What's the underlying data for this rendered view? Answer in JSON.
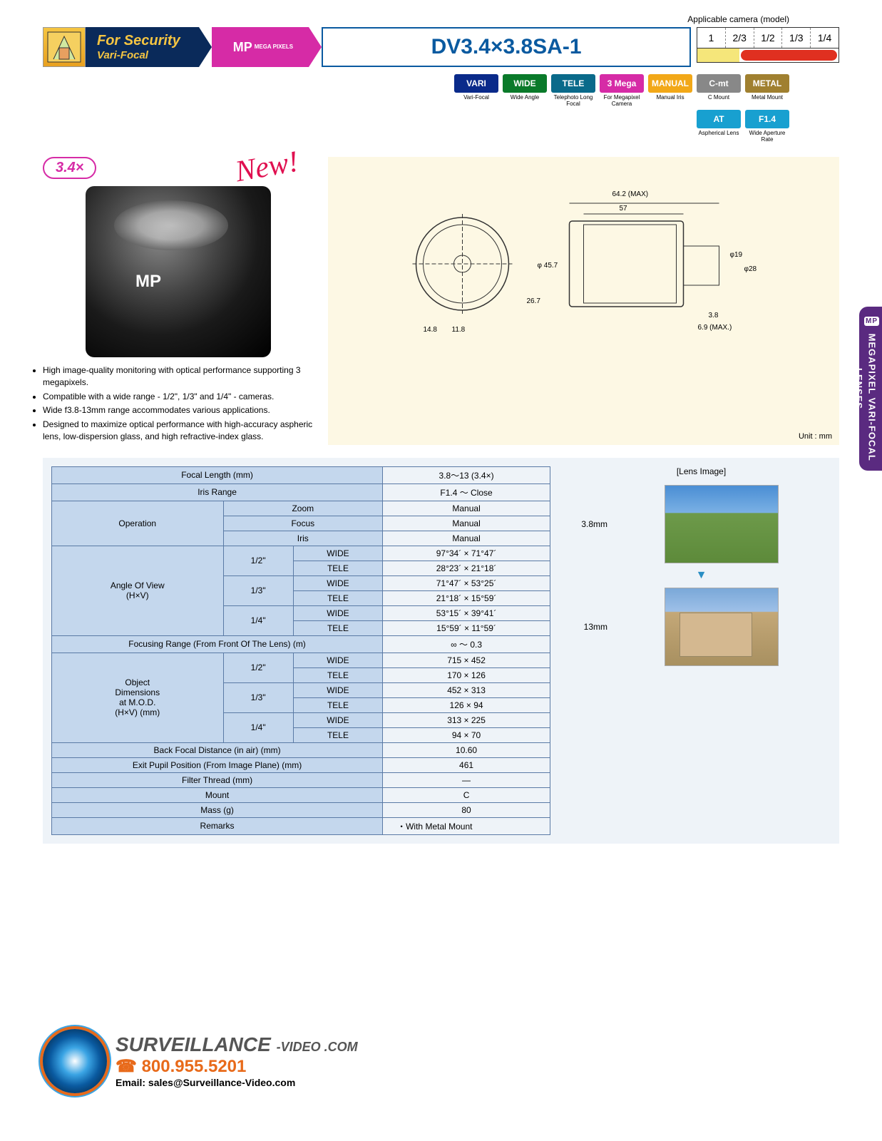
{
  "header": {
    "applicable_label": "Applicable camera (model)",
    "security_title": "For Security",
    "security_sub": "Vari-Focal",
    "mp_text": "MP",
    "mp_sub": "MEGA\nPIXELS",
    "model": "DV3.4×3.8SA-1",
    "camera_models": [
      "1",
      "2/3",
      "1/2",
      "1/3",
      "1/4"
    ],
    "camera_bar": {
      "yellow_pct": 30,
      "red_pct": 70
    }
  },
  "badges": [
    {
      "text": "VARI",
      "bg": "#0a2a8a",
      "label": "Vari-Focal"
    },
    {
      "text": "WIDE",
      "bg": "#0a7a2a",
      "label": "Wide Angle"
    },
    {
      "text": "TELE",
      "bg": "#0a6a8a",
      "label": "Telephoto\nLong Focal"
    },
    {
      "text": "3 Mega",
      "bg": "#d62ba6",
      "label": "For Megapixel\nCamera"
    },
    {
      "text": "MANUAL",
      "bg": "#f2a818",
      "label": "Manual Iris"
    },
    {
      "text": "C-mt",
      "bg": "#888888",
      "label": "C Mount",
      "extra": {
        "text": "AT",
        "bg": "#18a0d0",
        "label": "Aspherical Lens"
      }
    },
    {
      "text": "METAL",
      "bg": "#a08030",
      "label": "Metal Mount",
      "extra": {
        "text": "F1.4",
        "bg": "#18a0d0",
        "label": "Wide Aperture Rate"
      }
    }
  ],
  "product": {
    "zoom_factor": "3.4×",
    "new_tag": "New!",
    "mp_on_lens": "MP",
    "bullets": [
      "High image-quality monitoring with optical performance supporting 3 megapixels.",
      "Compatible with a wide range - 1/2\", 1/3\" and 1/4\" - cameras.",
      "Wide f3.8-13mm range accommodates various applications.",
      "Designed to maximize optical performance with high-accuracy aspheric lens, low-dispersion glass, and high refractive-index glass."
    ]
  },
  "diagram": {
    "unit_label": "Unit : mm",
    "dims": {
      "max_w": "64.2 (MAX)",
      "w": "57",
      "h": "φ 45.7",
      "front_d1": "14.8",
      "front_d2": "11.8",
      "side_d": "26.7",
      "back1": "3.8",
      "back2": "6.9 (MAX.)",
      "phi19": "φ19",
      "phi28": "φ28"
    }
  },
  "spec_table": {
    "rows": [
      {
        "label": "Focal Length (mm)",
        "value": "3.8～13 (3.4×)"
      },
      {
        "label": "Iris Range",
        "value": "F1.4 ～ Close"
      }
    ],
    "operation": {
      "label": "Operation",
      "items": [
        [
          "Zoom",
          "Manual"
        ],
        [
          "Focus",
          "Manual"
        ],
        [
          "Iris",
          "Manual"
        ]
      ]
    },
    "angle_of_view": {
      "label": "Angle Of View\n(H×V)",
      "groups": [
        {
          "sensor": "1/2\"",
          "rows": [
            [
              "WIDE",
              "97°34´ × 71°47´"
            ],
            [
              "TELE",
              "28°23´ × 21°18´"
            ]
          ]
        },
        {
          "sensor": "1/3\"",
          "rows": [
            [
              "WIDE",
              "71°47´ × 53°25´"
            ],
            [
              "TELE",
              "21°18´ × 15°59´"
            ]
          ]
        },
        {
          "sensor": "1/4\"",
          "rows": [
            [
              "WIDE",
              "53°15´ × 39°41´"
            ],
            [
              "TELE",
              "15°59´ × 11°59´"
            ]
          ]
        }
      ]
    },
    "focusing_range": {
      "label": "Focusing Range (From Front Of The Lens) (m)",
      "value": "∞ ～ 0.3"
    },
    "object_dims": {
      "label": "Object\nDimensions\nat M.O.D.\n(H×V) (mm)",
      "groups": [
        {
          "sensor": "1/2\"",
          "rows": [
            [
              "WIDE",
              "715 × 452"
            ],
            [
              "TELE",
              "170 × 126"
            ]
          ]
        },
        {
          "sensor": "1/3\"",
          "rows": [
            [
              "WIDE",
              "452 × 313"
            ],
            [
              "TELE",
              "126 × 94"
            ]
          ]
        },
        {
          "sensor": "1/4\"",
          "rows": [
            [
              "WIDE",
              "313 × 225"
            ],
            [
              "TELE",
              "94 × 70"
            ]
          ]
        }
      ]
    },
    "simple_rows": [
      {
        "label": "Back Focal Distance (in air) (mm)",
        "value": "10.60"
      },
      {
        "label": "Exit Pupil Position (From Image Plane) (mm)",
        "value": "461"
      },
      {
        "label": "Filter Thread (mm)",
        "value": "—"
      },
      {
        "label": "Mount",
        "value": "C"
      },
      {
        "label": "Mass (g)",
        "value": "80"
      }
    ],
    "remarks": {
      "label": "Remarks",
      "value": "・With Metal Mount"
    }
  },
  "lens_images": {
    "title": "[Lens Image]",
    "wide_label": "3.8mm",
    "tele_label": "13mm"
  },
  "side_tab": {
    "mp": "MP",
    "text": "MEGAPIXEL VARI-FOCAL LENSES"
  },
  "footer": {
    "company": "SURVEILLANCE",
    "suffix": "-VIDEO .COM",
    "phone": "800.955.5201",
    "email": "Email: sales@Surveillance-Video.com"
  }
}
